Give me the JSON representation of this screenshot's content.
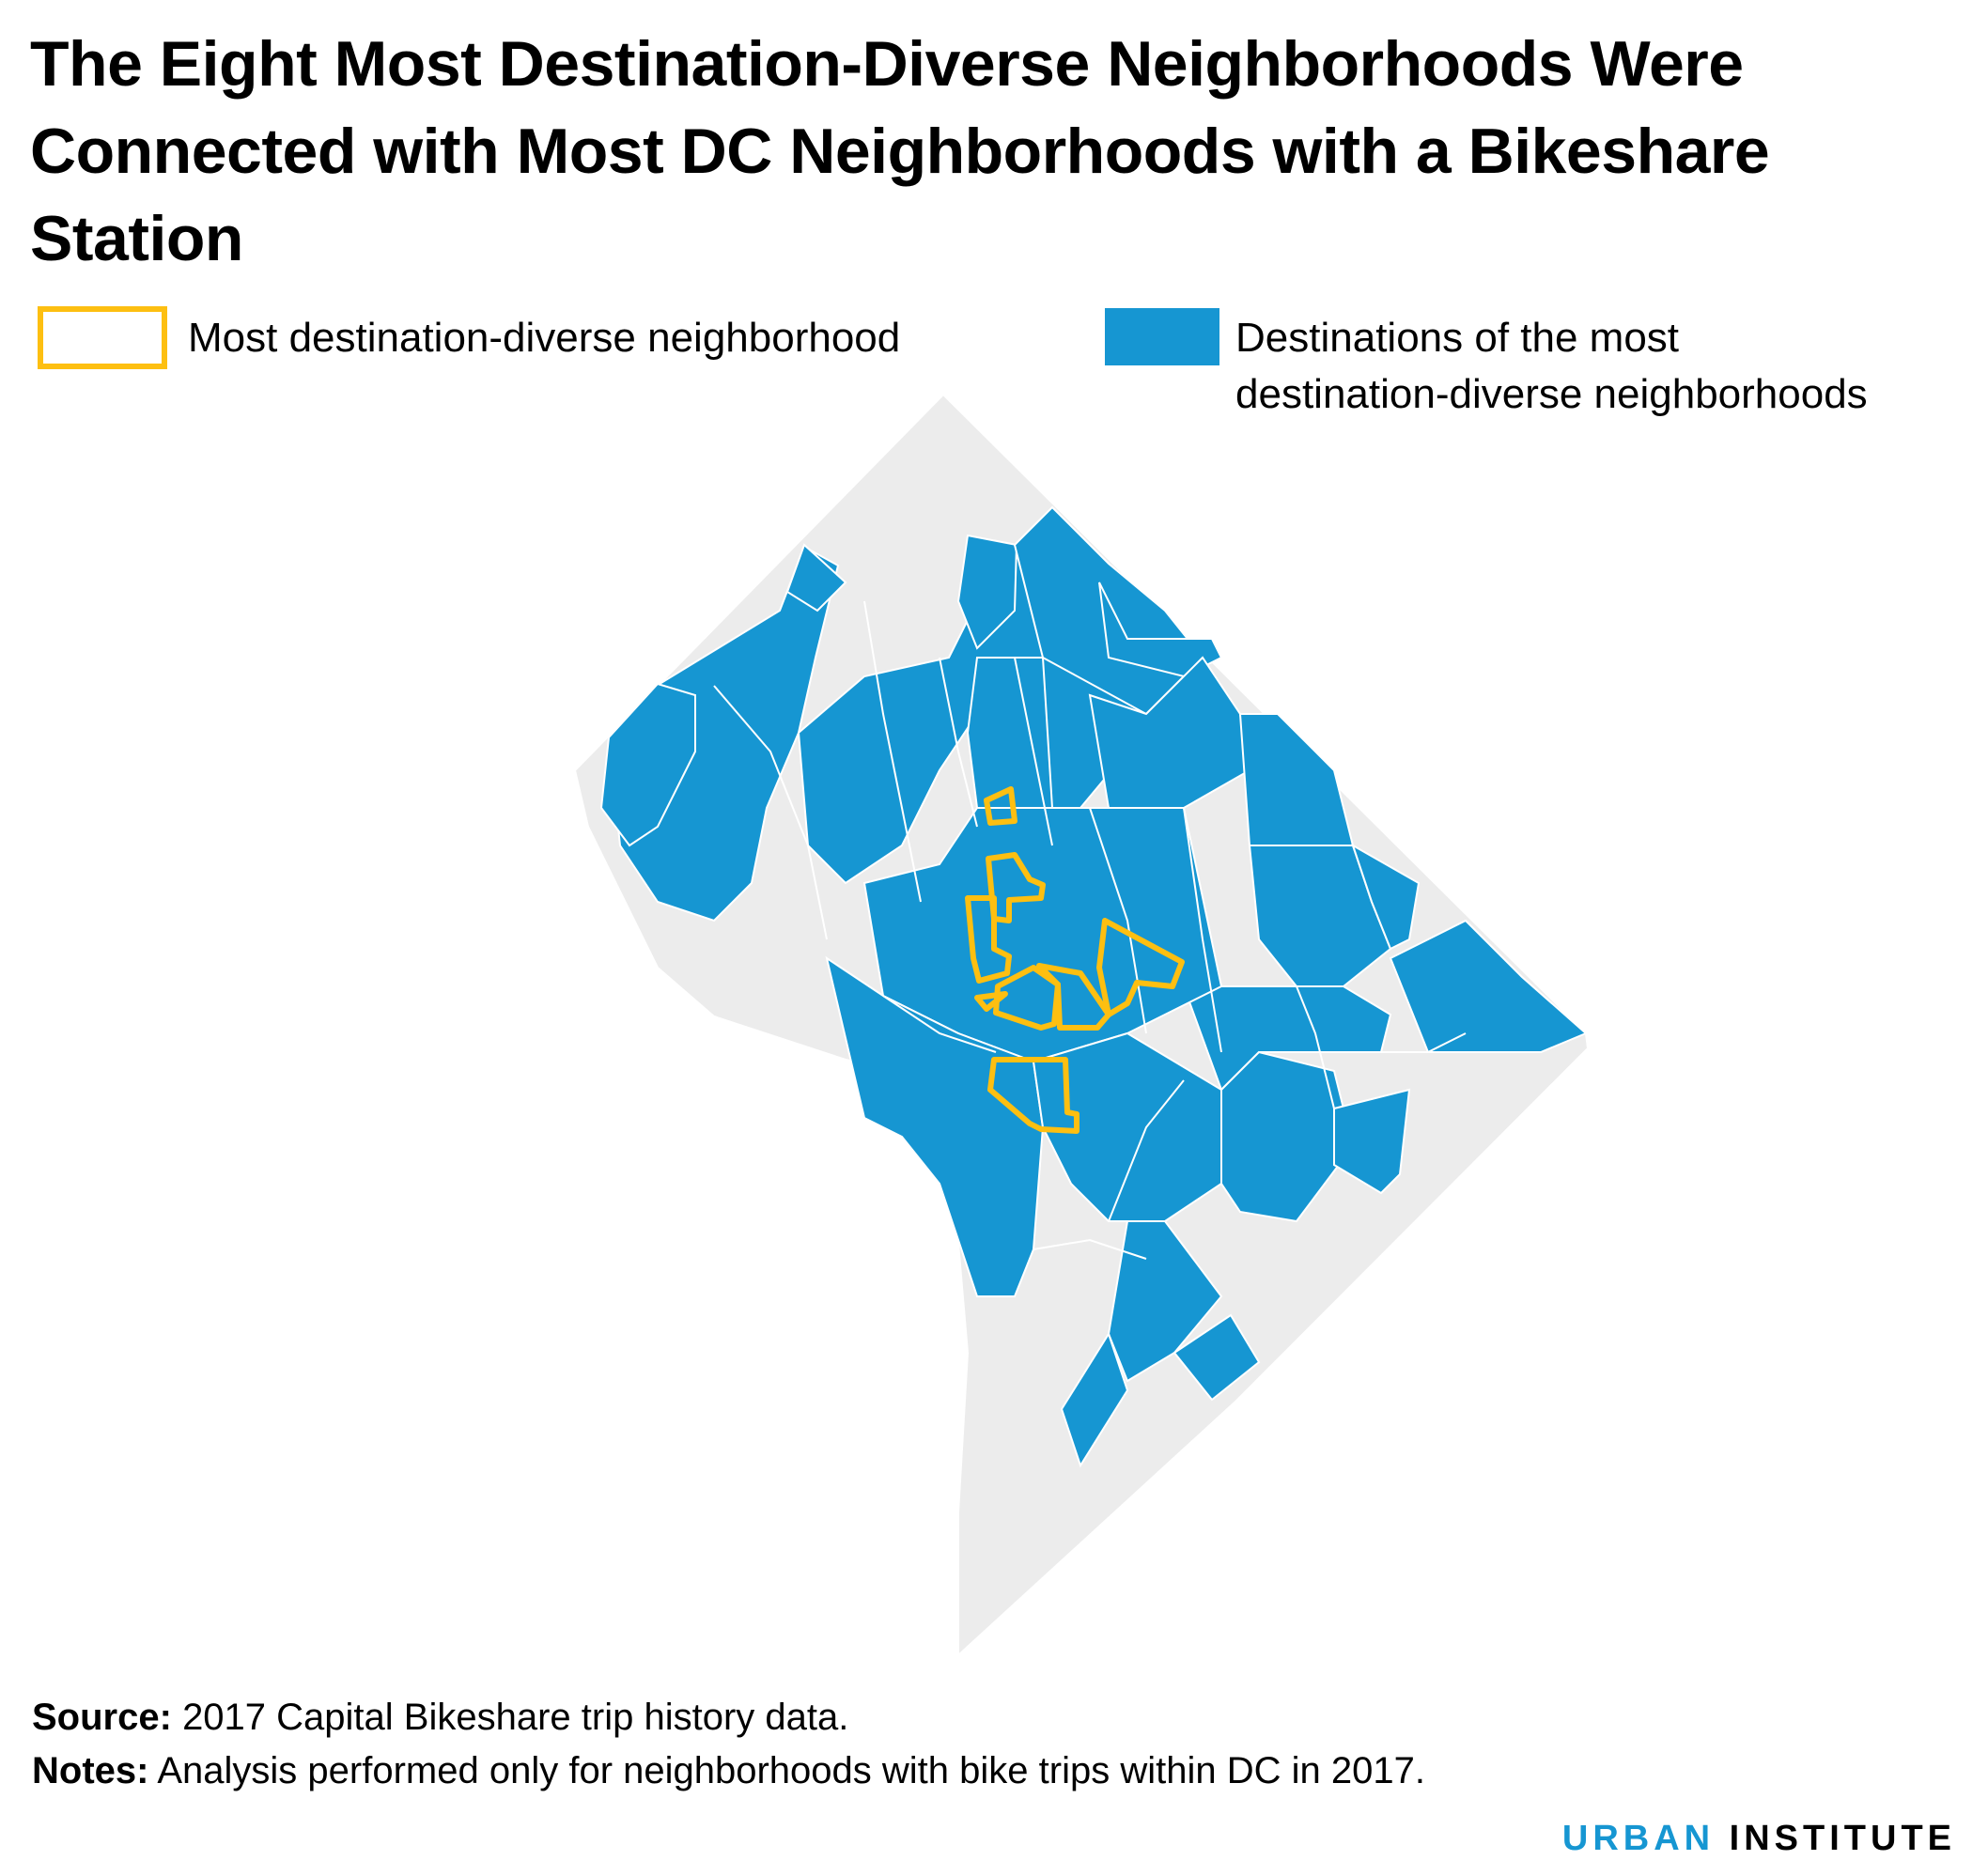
{
  "title": "The Eight Most Destination-Diverse Neighborhoods Were Connected with Most DC Neighborhoods with a Bikeshare Station",
  "legend": {
    "outline_label": "Most destination-diverse neighborhood",
    "fill_label_line1": "Destinations of the most",
    "fill_label_line2": "destination-diverse neighborhoods"
  },
  "colors": {
    "highlight_outline": "#fdbf11",
    "destination_fill": "#1696d2",
    "other_fill": "#ececec",
    "border": "#ffffff"
  },
  "map": {
    "region": "Washington, DC",
    "categories": [
      "Most destination-diverse neighborhood",
      "Destinations of the most destination-diverse neighborhoods",
      "Other neighborhoods"
    ],
    "highlighted_count": 8
  },
  "footer": {
    "source_label": "Source:",
    "source_text": "2017 Capital Bikeshare trip history data.",
    "notes_label": "Notes:",
    "notes_text": "Analysis performed only for neighborhoods with bike trips within DC in 2017."
  },
  "brand": {
    "urban": "URBAN",
    "institute": "INSTITUTE"
  }
}
